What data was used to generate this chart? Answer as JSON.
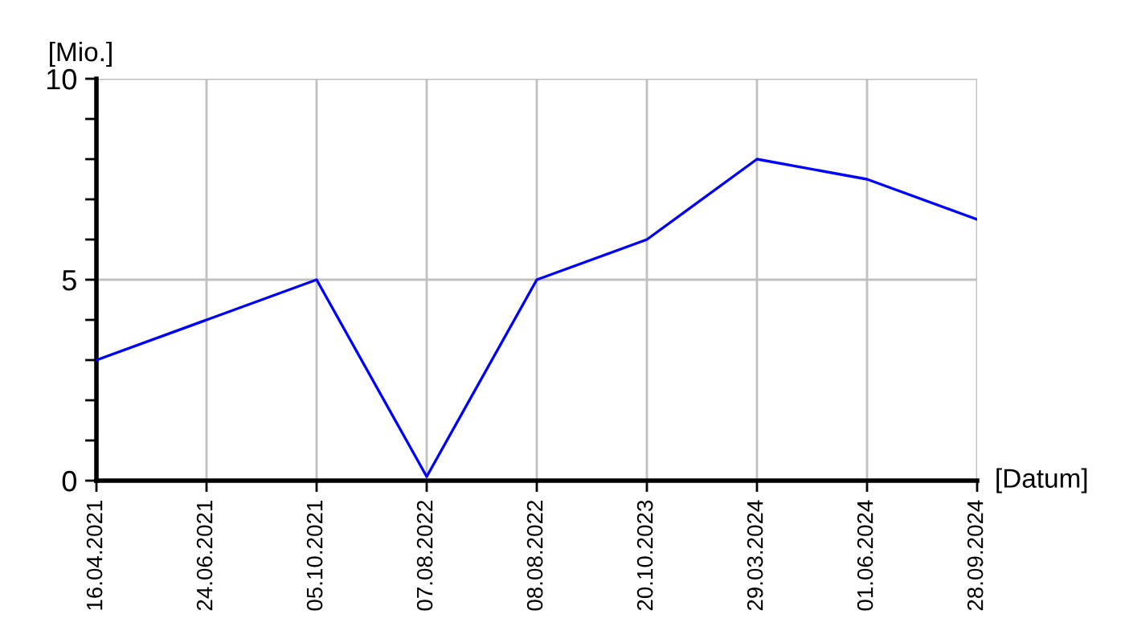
{
  "chart_data": {
    "type": "line",
    "xlabel": "[Datum]",
    "ylabel": "[Mio.]",
    "categories": [
      "16.04.2021",
      "24.06.2021",
      "05.10.2021",
      "07.08.2022",
      "08.08.2022",
      "20.10.2023",
      "29.03.2024",
      "01.06.2024",
      "28.09.2024"
    ],
    "series": [
      {
        "color": "#0000ff",
        "values": [
          3,
          4,
          5,
          0.1,
          5,
          6,
          8,
          7.5,
          6.5
        ]
      }
    ],
    "ylim": [
      0,
      10
    ],
    "yticks": [
      0,
      {
        "value": 1,
        "label": null
      },
      {
        "value": 2,
        "label": null
      },
      {
        "value": 3,
        "label": null
      },
      {
        "value": 4,
        "label": null
      },
      5,
      {
        "value": 6,
        "label": null
      },
      {
        "value": 7,
        "label": null
      },
      {
        "value": 8,
        "label": null
      },
      {
        "value": 9,
        "label": null
      },
      10
    ],
    "grid": true,
    "marker": "none",
    "line_style": "solid",
    "legend": false
  }
}
